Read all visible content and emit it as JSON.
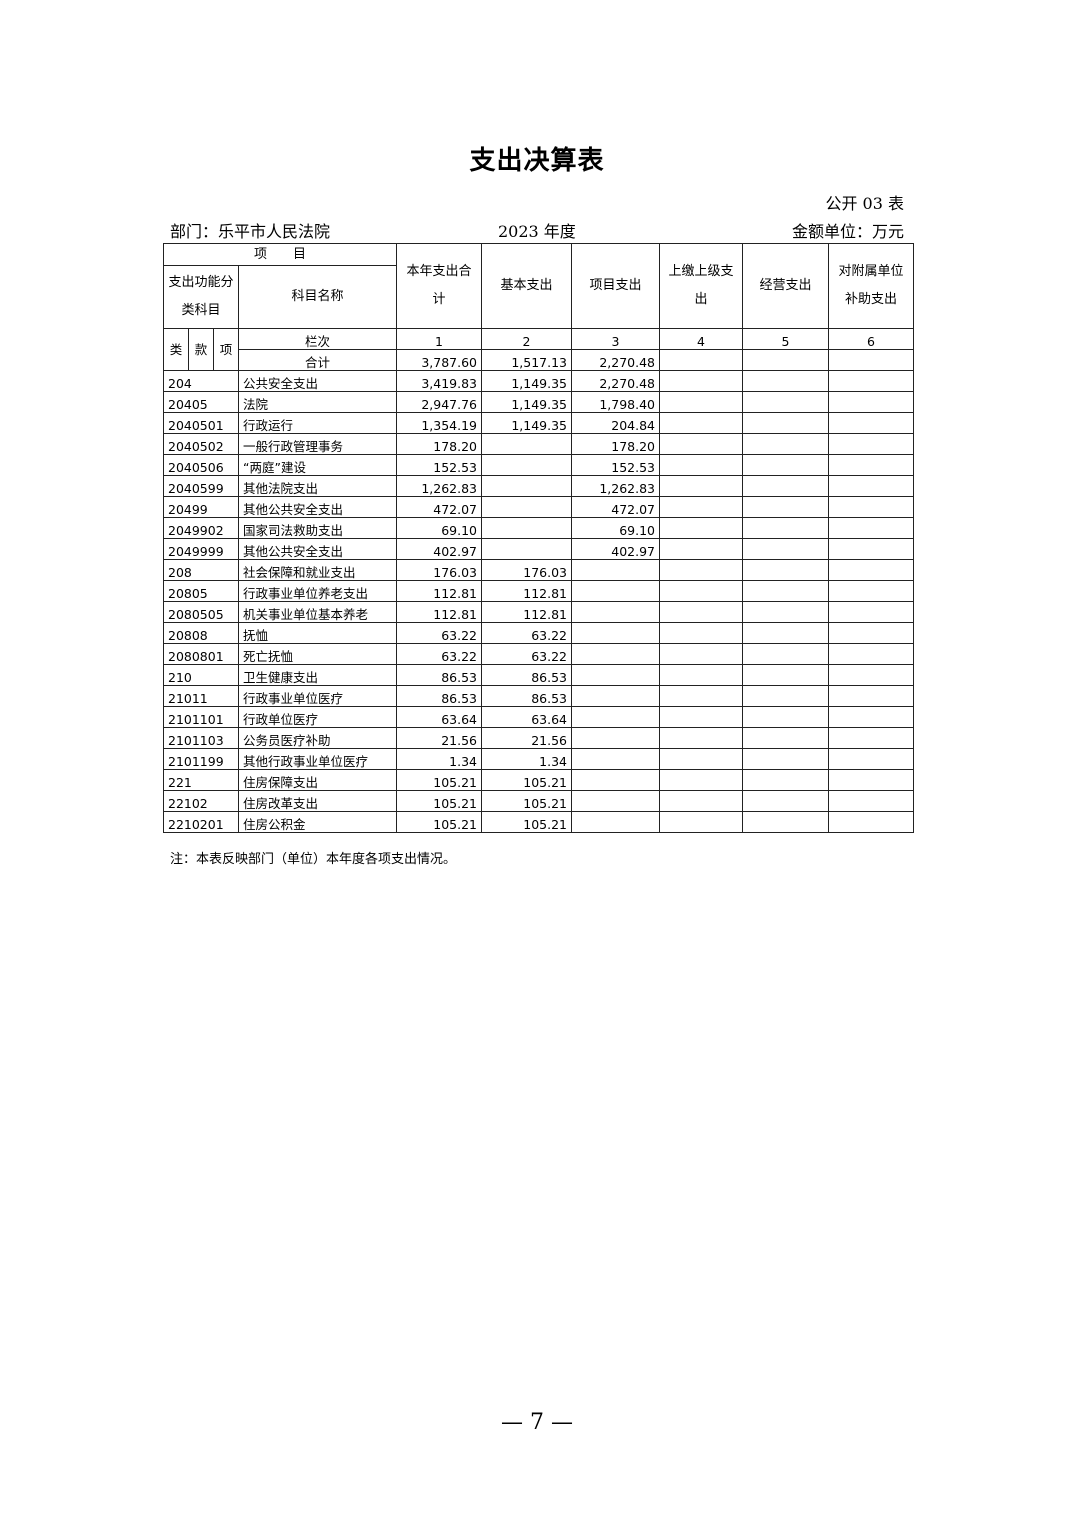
{
  "title": "支出决算表",
  "form_no": "公开 03 表",
  "department": "部门：乐平市人民法院",
  "year": "2023 年度",
  "unit": "金额单位：万元",
  "header": {
    "item": "项　　目",
    "func_class": "支出功能分类科目",
    "subject_name": "科目名称",
    "lei": "类",
    "kuan": "款",
    "xiang": "项",
    "cols": [
      "本年支出合计",
      "基本支出",
      "项目支出",
      "上缴上级支出",
      "经营支出",
      "对附属单位补助支出"
    ],
    "col_index_label": "栏次",
    "col_index": [
      "1",
      "2",
      "3",
      "4",
      "5",
      "6"
    ]
  },
  "total": {
    "label": "合计",
    "values": [
      "3,787.60",
      "1,517.13",
      "2,270.48",
      "",
      "",
      ""
    ]
  },
  "rows": [
    {
      "code": "204",
      "name": "公共安全支出",
      "values": [
        "3,419.83",
        "1,149.35",
        "2,270.48",
        "",
        "",
        ""
      ]
    },
    {
      "code": "20405",
      "name": "法院",
      "values": [
        "2,947.76",
        "1,149.35",
        "1,798.40",
        "",
        "",
        ""
      ]
    },
    {
      "code": "2040501",
      "name": "行政运行",
      "values": [
        "1,354.19",
        "1,149.35",
        "204.84",
        "",
        "",
        ""
      ]
    },
    {
      "code": "2040502",
      "name": "一般行政管理事务",
      "values": [
        "178.20",
        "",
        "178.20",
        "",
        "",
        ""
      ]
    },
    {
      "code": "2040506",
      "name": "“两庭”建设",
      "values": [
        "152.53",
        "",
        "152.53",
        "",
        "",
        ""
      ]
    },
    {
      "code": "2040599",
      "name": "其他法院支出",
      "values": [
        "1,262.83",
        "",
        "1,262.83",
        "",
        "",
        ""
      ]
    },
    {
      "code": "20499",
      "name": "其他公共安全支出",
      "values": [
        "472.07",
        "",
        "472.07",
        "",
        "",
        ""
      ]
    },
    {
      "code": "2049902",
      "name": "国家司法救助支出",
      "values": [
        "69.10",
        "",
        "69.10",
        "",
        "",
        ""
      ]
    },
    {
      "code": "2049999",
      "name": "其他公共安全支出",
      "values": [
        "402.97",
        "",
        "402.97",
        "",
        "",
        ""
      ]
    },
    {
      "code": "208",
      "name": "社会保障和就业支出",
      "values": [
        "176.03",
        "176.03",
        "",
        "",
        "",
        ""
      ]
    },
    {
      "code": "20805",
      "name": "行政事业单位养老支出",
      "values": [
        "112.81",
        "112.81",
        "",
        "",
        "",
        ""
      ]
    },
    {
      "code": "2080505",
      "name": "机关事业单位基本养老",
      "values": [
        "112.81",
        "112.81",
        "",
        "",
        "",
        ""
      ]
    },
    {
      "code": "20808",
      "name": "抚恤",
      "values": [
        "63.22",
        "63.22",
        "",
        "",
        "",
        ""
      ]
    },
    {
      "code": "2080801",
      "name": "死亡抚恤",
      "values": [
        "63.22",
        "63.22",
        "",
        "",
        "",
        ""
      ]
    },
    {
      "code": "210",
      "name": "卫生健康支出",
      "values": [
        "86.53",
        "86.53",
        "",
        "",
        "",
        ""
      ]
    },
    {
      "code": "21011",
      "name": "行政事业单位医疗",
      "values": [
        "86.53",
        "86.53",
        "",
        "",
        "",
        ""
      ]
    },
    {
      "code": "2101101",
      "name": "行政单位医疗",
      "values": [
        "63.64",
        "63.64",
        "",
        "",
        "",
        ""
      ]
    },
    {
      "code": "2101103",
      "name": "公务员医疗补助",
      "values": [
        "21.56",
        "21.56",
        "",
        "",
        "",
        ""
      ]
    },
    {
      "code": "2101199",
      "name": "其他行政事业单位医疗",
      "values": [
        "1.34",
        "1.34",
        "",
        "",
        "",
        ""
      ]
    },
    {
      "code": "221",
      "name": "住房保障支出",
      "values": [
        "105.21",
        "105.21",
        "",
        "",
        "",
        ""
      ]
    },
    {
      "code": "22102",
      "name": "住房改革支出",
      "values": [
        "105.21",
        "105.21",
        "",
        "",
        "",
        ""
      ]
    },
    {
      "code": "2210201",
      "name": "住房公积金",
      "values": [
        "105.21",
        "105.21",
        "",
        "",
        "",
        ""
      ]
    }
  ],
  "note": "注：本表反映部门（单位）本年度各项支出情况。",
  "page_number": "— 7 —"
}
